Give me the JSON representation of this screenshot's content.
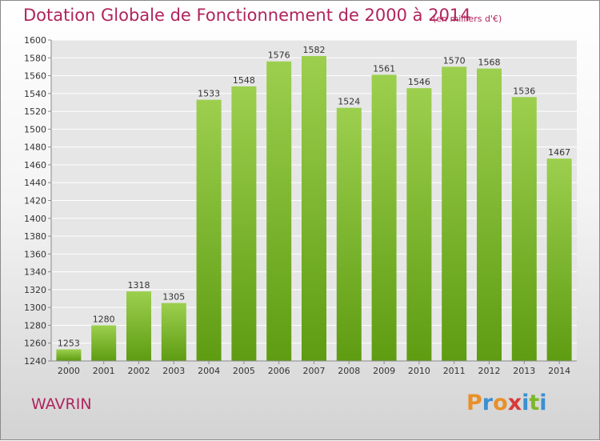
{
  "chart_data": {
    "type": "bar",
    "title": "Dotation Globale de Fonctionnement de 2000 à 2014",
    "subtitle": "(en milliers d'€)",
    "categories": [
      "2000",
      "2001",
      "2002",
      "2003",
      "2004",
      "2005",
      "2006",
      "2007",
      "2008",
      "2009",
      "2010",
      "2011",
      "2012",
      "2013",
      "2014"
    ],
    "values": [
      1253,
      1280,
      1318,
      1305,
      1533,
      1548,
      1576,
      1582,
      1524,
      1561,
      1546,
      1570,
      1568,
      1536,
      1467
    ],
    "ylim": [
      1240,
      1600
    ],
    "yticks": [
      1240,
      1260,
      1280,
      1300,
      1320,
      1340,
      1360,
      1380,
      1400,
      1420,
      1440,
      1460,
      1480,
      1500,
      1520,
      1540,
      1560,
      1580,
      1600
    ],
    "grid": true,
    "bar_color_top": "#9ccf4e",
    "bar_color_bottom": "#5e9c12"
  },
  "footer": {
    "city": "WAVRIN",
    "logo": [
      "P",
      "r",
      "o",
      "x",
      "i",
      "t",
      "i"
    ],
    "logo_colors": [
      "#e8902a",
      "#3a8fd0",
      "#e8902a",
      "#d73a3a",
      "#3a8fd0",
      "#7ab82a",
      "#3a8fd0"
    ]
  }
}
